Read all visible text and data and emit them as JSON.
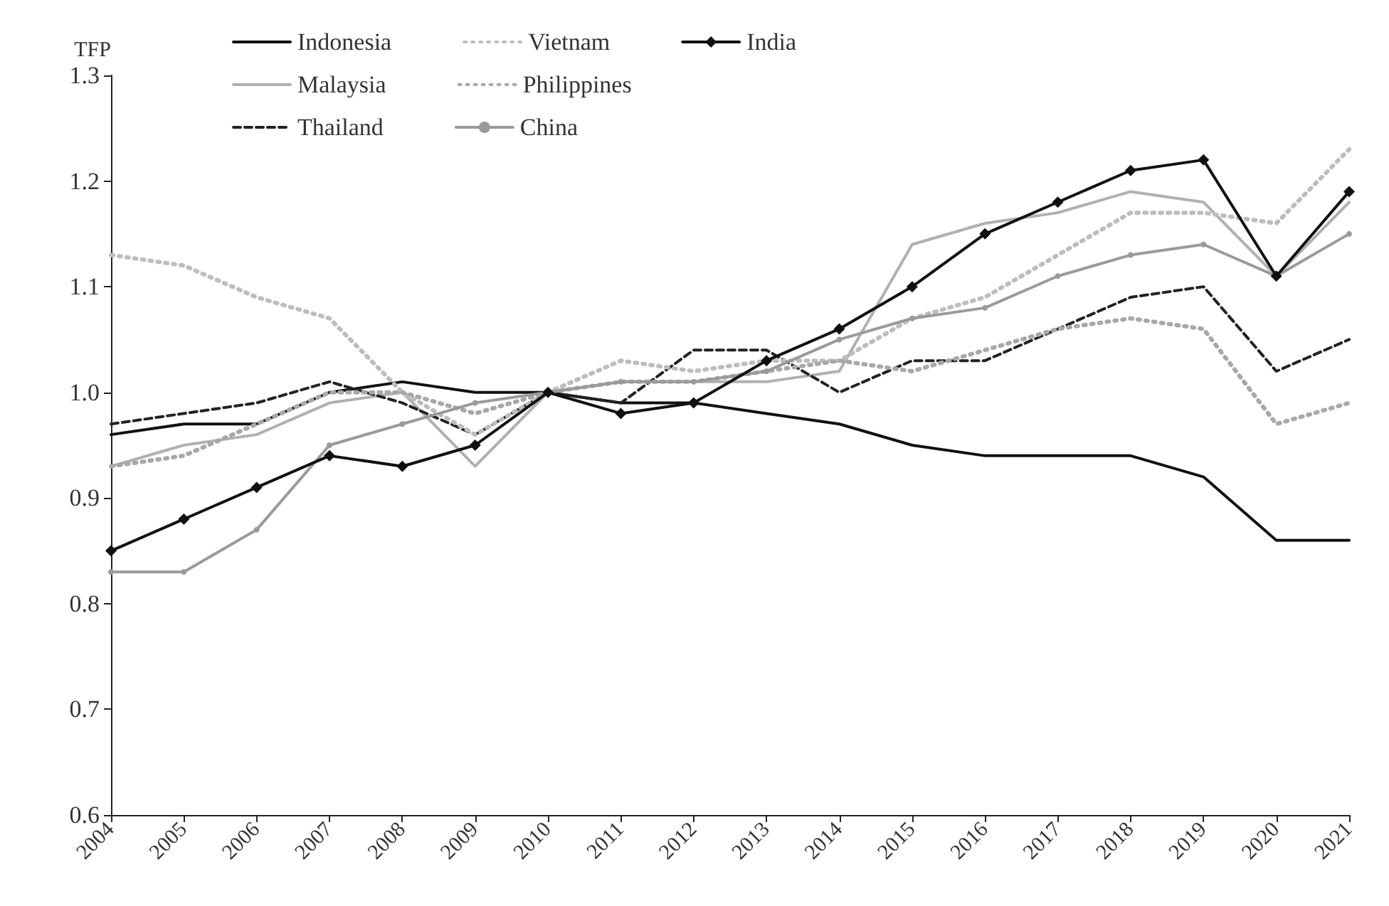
{
  "chart_data": {
    "type": "line",
    "ylabel": "TFP",
    "categories": [
      "2004",
      "2005",
      "2006",
      "2007",
      "2008",
      "2009",
      "2010",
      "2011",
      "2012",
      "2013",
      "2014",
      "2015",
      "2016",
      "2017",
      "2018",
      "2019",
      "2020",
      "2021"
    ],
    "series": [
      {
        "name": "Indonesia",
        "color": "#111111",
        "line_style": "solid",
        "marker": "none",
        "values": [
          0.96,
          0.97,
          0.97,
          1.0,
          1.01,
          1.0,
          1.0,
          0.99,
          0.99,
          0.98,
          0.97,
          0.95,
          0.94,
          0.94,
          0.94,
          0.92,
          0.86,
          0.86
        ]
      },
      {
        "name": "Malaysia",
        "color": "#b0b0b0",
        "line_style": "solid",
        "marker": "none",
        "values": [
          0.93,
          0.95,
          0.96,
          0.99,
          1.0,
          0.93,
          1.0,
          1.01,
          1.01,
          1.01,
          1.02,
          1.14,
          1.16,
          1.17,
          1.19,
          1.18,
          1.11,
          1.18
        ]
      },
      {
        "name": "Thailand",
        "color": "#222222",
        "line_style": "dashed",
        "marker": "none",
        "values": [
          0.97,
          0.98,
          0.99,
          1.01,
          0.99,
          0.96,
          1.0,
          0.99,
          1.04,
          1.04,
          1.0,
          1.03,
          1.03,
          1.06,
          1.09,
          1.1,
          1.02,
          1.05
        ]
      },
      {
        "name": "Vietnam",
        "color": "#bdbdbd",
        "line_style": "dotted",
        "marker": "none",
        "values": [
          1.13,
          1.12,
          1.09,
          1.07,
          1.0,
          0.96,
          1.0,
          1.03,
          1.02,
          1.03,
          1.03,
          1.07,
          1.09,
          1.13,
          1.17,
          1.17,
          1.16,
          1.23
        ]
      },
      {
        "name": "Philippines",
        "color": "#a8a8a8",
        "line_style": "dotted",
        "marker": "none",
        "values": [
          0.93,
          0.94,
          0.97,
          1.0,
          1.0,
          0.98,
          1.0,
          1.01,
          1.01,
          1.02,
          1.03,
          1.02,
          1.04,
          1.06,
          1.07,
          1.06,
          0.97,
          0.99
        ]
      },
      {
        "name": "China",
        "color": "#9a9a9a",
        "line_style": "solid",
        "marker": "circle",
        "values": [
          0.83,
          0.83,
          0.87,
          0.95,
          0.97,
          0.99,
          1.0,
          1.01,
          1.01,
          1.02,
          1.05,
          1.07,
          1.08,
          1.11,
          1.13,
          1.14,
          1.11,
          1.15
        ]
      },
      {
        "name": "India",
        "color": "#111111",
        "line_style": "solid",
        "marker": "diamond",
        "values": [
          0.85,
          0.88,
          0.91,
          0.94,
          0.93,
          0.95,
          1.0,
          0.98,
          0.99,
          1.03,
          1.06,
          1.1,
          1.15,
          1.18,
          1.21,
          1.22,
          1.11,
          1.19
        ]
      }
    ],
    "ylim": [
      0.6,
      1.3
    ],
    "yticks": [
      {
        "value": 0.6,
        "label": "0.6"
      },
      {
        "value": 0.7,
        "label": "0.7"
      },
      {
        "value": 0.8,
        "label": "0.8"
      },
      {
        "value": 0.9,
        "label": "0.9"
      },
      {
        "value": 1.0,
        "label": "1.0"
      },
      {
        "value": 1.1,
        "label": "1.1"
      },
      {
        "value": 1.2,
        "label": "1.2"
      },
      {
        "value": 1.3,
        "label": "1.3"
      }
    ],
    "grid": false,
    "legend": "top"
  }
}
